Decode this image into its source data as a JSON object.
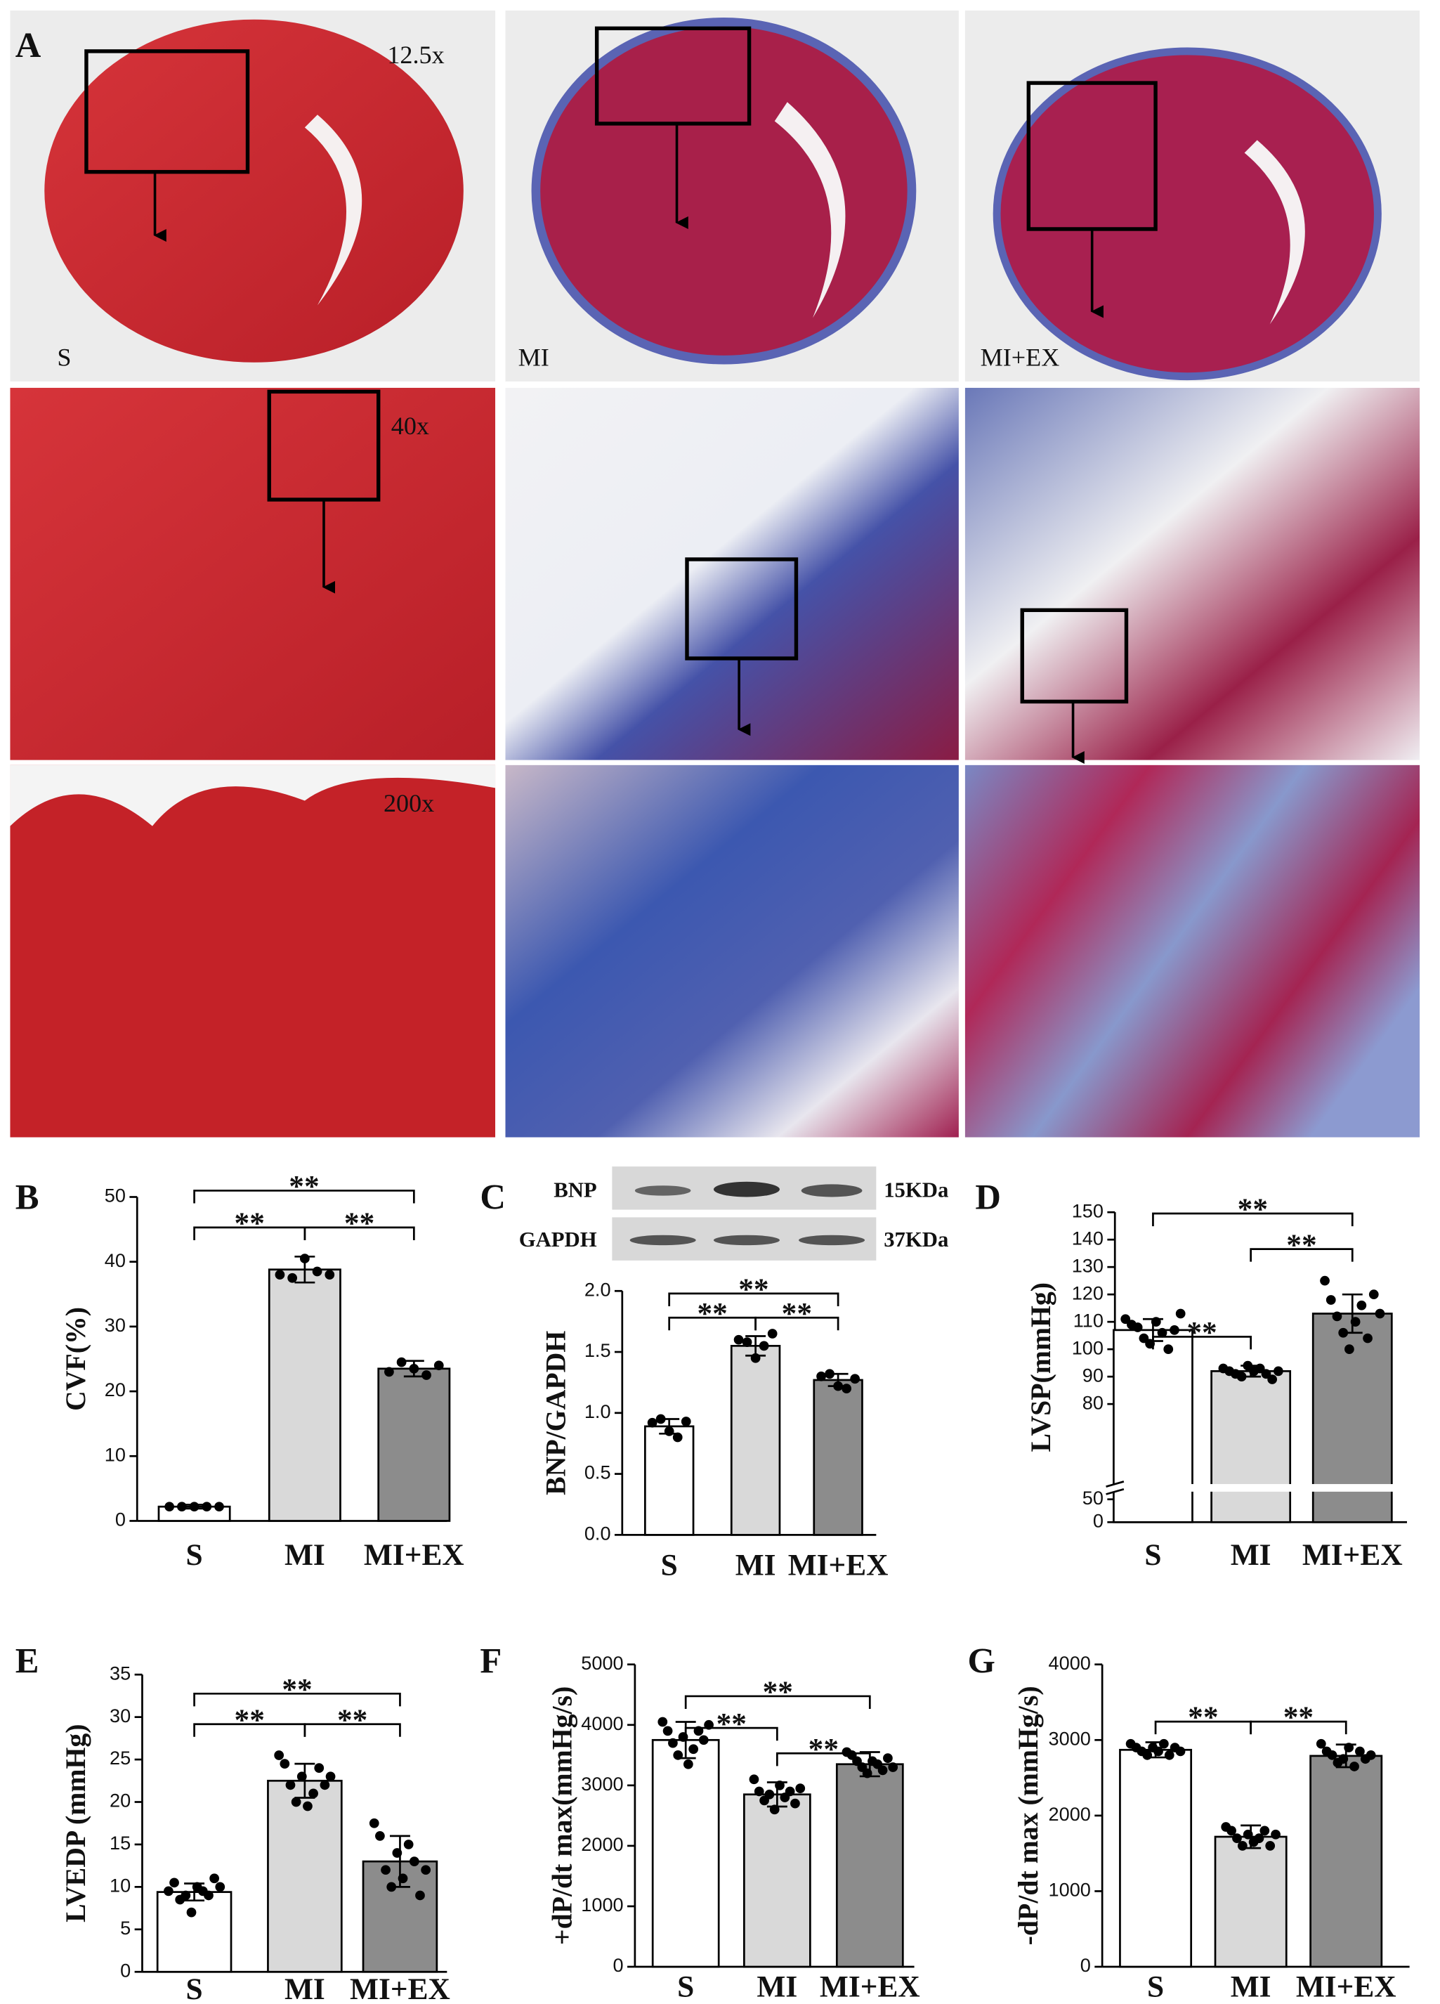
{
  "panel_a": {
    "label": "A",
    "magnifications": [
      "12.5x",
      "40x",
      "200x"
    ],
    "groups": [
      "S",
      "MI",
      "MI+EX"
    ]
  },
  "blot": {
    "rows": [
      "BNP",
      "GAPDH"
    ],
    "sizes": [
      "15KDa",
      "37KDa"
    ]
  },
  "chart_data": [
    {
      "type": "bar",
      "panel": "B",
      "y_label": "CVF(%)",
      "categories": [
        "S",
        "MI",
        "MI+EX"
      ],
      "colors": [
        "#ffffff",
        "#d9d9d9",
        "#8c8c8c"
      ],
      "values": [
        2.2,
        38.8,
        23.5
      ],
      "errors": [
        0.3,
        2,
        1.2
      ],
      "points": [
        [
          2.2,
          2.2,
          2.2,
          2.2,
          2.2
        ],
        [
          38,
          37.5,
          40.5,
          38.5,
          38
        ],
        [
          23,
          24.5,
          23.5,
          22.5,
          24
        ]
      ],
      "ylim": [
        0,
        50
      ],
      "yticks": [
        0,
        10,
        20,
        30,
        40,
        50
      ],
      "brackets": [
        {
          "from": "S",
          "to": "MI+EX",
          "label": "**"
        },
        {
          "from": "S",
          "to": "MI",
          "label": "**"
        },
        {
          "from": "MI",
          "to": "MI+EX",
          "label": "**"
        }
      ]
    },
    {
      "type": "bar",
      "panel": "C",
      "y_label": "BNP/GAPDH",
      "categories": [
        "S",
        "MI",
        "MI+EX"
      ],
      "colors": [
        "#ffffff",
        "#d9d9d9",
        "#8c8c8c"
      ],
      "values": [
        0.89,
        1.55,
        1.27
      ],
      "errors": [
        0.06,
        0.08,
        0.05
      ],
      "points": [
        [
          0.92,
          0.95,
          0.85,
          0.8,
          0.93
        ],
        [
          1.6,
          1.58,
          1.45,
          1.55,
          1.65
        ],
        [
          1.3,
          1.32,
          1.22,
          1.2,
          1.28
        ]
      ],
      "ylim": [
        0,
        2
      ],
      "yticks": [
        {
          "value": 0,
          "label": "0.0"
        },
        {
          "value": 0.5,
          "label": "0.5"
        },
        {
          "value": 1,
          "label": "1.0"
        },
        {
          "value": 1.5,
          "label": "1.5"
        },
        {
          "value": 2,
          "label": "2.0"
        }
      ],
      "brackets": [
        {
          "from": "S",
          "to": "MI+EX",
          "label": "**"
        },
        {
          "from": "S",
          "to": "MI",
          "label": "**"
        },
        {
          "from": "MI",
          "to": "MI+EX",
          "label": "**"
        }
      ]
    },
    {
      "type": "bar",
      "panel": "D",
      "y_label": "LVSP(mmHg)",
      "categories": [
        "S",
        "MI",
        "MI+EX"
      ],
      "colors": [
        "#ffffff",
        "#d9d9d9",
        "#8c8c8c"
      ],
      "values": [
        107,
        92,
        113
      ],
      "errors": [
        4,
        2,
        7
      ],
      "points": [
        [
          111,
          109,
          108,
          104,
          102,
          110,
          106,
          100,
          107,
          113
        ],
        [
          93,
          92,
          91,
          90,
          94,
          92,
          93,
          91,
          89,
          92
        ],
        [
          125,
          118,
          112,
          106,
          100,
          110,
          116,
          104,
          120,
          113
        ]
      ],
      "ylim": [
        0,
        150
      ],
      "axis_break": [
        50,
        80
      ],
      "yticks": [
        0,
        50,
        80,
        90,
        100,
        110,
        120,
        130,
        140,
        150
      ],
      "brackets": [
        {
          "from": "S",
          "to": "MI+EX",
          "label": "**"
        },
        {
          "from": "MI",
          "to": "MI+EX",
          "label": "**"
        },
        {
          "from": "S",
          "to": "MI",
          "label": "**"
        }
      ]
    },
    {
      "type": "bar",
      "panel": "E",
      "y_label": "LVEDP (mmHg)",
      "categories": [
        "S",
        "MI",
        "MI+EX"
      ],
      "colors": [
        "#ffffff",
        "#d9d9d9",
        "#8c8c8c"
      ],
      "values": [
        9.4,
        22.5,
        13.0
      ],
      "errors": [
        1,
        2,
        3
      ],
      "points": [
        [
          9.5,
          10.5,
          8.5,
          9,
          7,
          10,
          9.5,
          9,
          11,
          10
        ],
        [
          25.5,
          24.5,
          22,
          20,
          23,
          19.5,
          21,
          24,
          22,
          23
        ],
        [
          17.5,
          16,
          12,
          10,
          14,
          11,
          15,
          13,
          9,
          12
        ]
      ],
      "ylim": [
        0,
        35
      ],
      "yticks": [
        0,
        5,
        10,
        15,
        20,
        25,
        30,
        35
      ],
      "brackets": [
        {
          "from": "S",
          "to": "MI+EX",
          "label": "**"
        },
        {
          "from": "S",
          "to": "MI",
          "label": "**"
        },
        {
          "from": "MI",
          "to": "MI+EX",
          "label": "**"
        }
      ]
    },
    {
      "type": "bar",
      "panel": "F",
      "y_label": "+dP/dt max(mmHg/s)",
      "categories": [
        "S",
        "MI",
        "MI+EX"
      ],
      "colors": [
        "#ffffff",
        "#d9d9d9",
        "#8c8c8c"
      ],
      "values": [
        3750,
        2850,
        3350
      ],
      "errors": [
        300,
        200,
        200
      ],
      "points": [
        [
          4050,
          3900,
          3700,
          3500,
          3800,
          3350,
          3600,
          3900,
          3750,
          4000
        ],
        [
          3100,
          2900,
          2750,
          2850,
          2600,
          3000,
          2800,
          2900,
          2700,
          2950
        ],
        [
          3550,
          3500,
          3400,
          3300,
          3200,
          3400,
          3350,
          3250,
          3450,
          3300
        ]
      ],
      "ylim": [
        0,
        5000
      ],
      "yticks": [
        0,
        1000,
        2000,
        3000,
        4000,
        5000
      ],
      "brackets": [
        {
          "from": "S",
          "to": "MI+EX",
          "label": "**"
        },
        {
          "from": "S",
          "to": "MI",
          "label": "**"
        },
        {
          "from": "MI",
          "to": "MI+EX",
          "label": "**"
        }
      ]
    },
    {
      "type": "bar",
      "panel": "G",
      "y_label": "-dP/dt max (mmHg/s)",
      "categories": [
        "S",
        "MI",
        "MI+EX"
      ],
      "colors": [
        "#ffffff",
        "#d9d9d9",
        "#8c8c8c"
      ],
      "values": [
        2870,
        1720,
        2790
      ],
      "errors": [
        100,
        150,
        150
      ],
      "points": [
        [
          2950,
          2900,
          2850,
          2800,
          2900,
          2850,
          2950,
          2800,
          2900,
          2850
        ],
        [
          1850,
          1800,
          1700,
          1600,
          1750,
          1650,
          1700,
          1800,
          1600,
          1750
        ],
        [
          2950,
          2850,
          2800,
          2700,
          2750,
          2900,
          2650,
          2850,
          2750,
          2800
        ]
      ],
      "ylim": [
        0,
        4000
      ],
      "yticks": [
        0,
        1000,
        2000,
        3000,
        4000
      ],
      "brackets": [
        {
          "from": "S",
          "to": "MI",
          "label": "**"
        },
        {
          "from": "MI",
          "to": "MI+EX",
          "label": "**"
        }
      ]
    }
  ]
}
